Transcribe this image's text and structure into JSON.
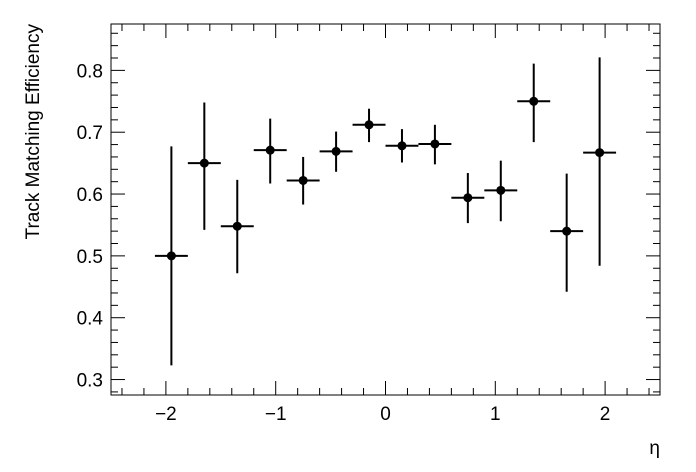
{
  "chart_data": {
    "type": "scatter",
    "title": "",
    "xlabel": "η",
    "ylabel": "Track Matching Efficiency",
    "xlim": [
      -2.5,
      2.5
    ],
    "ylim": [
      0.275,
      0.875
    ],
    "xticks": [
      -2,
      -1,
      0,
      1,
      2
    ],
    "xtick_labels": [
      "−2",
      "−1",
      "0",
      "1",
      "2"
    ],
    "yticks": [
      0.3,
      0.4,
      0.5,
      0.6,
      0.7,
      0.8
    ],
    "ytick_labels": [
      "0.3",
      "0.4",
      "0.5",
      "0.6",
      "0.7",
      "0.8"
    ],
    "grid": false,
    "legend": "none",
    "marker_color": "#000000",
    "points": [
      {
        "x": -1.95,
        "xerr": 0.15,
        "y": 0.5,
        "ylo": 0.323,
        "yhi": 0.677
      },
      {
        "x": -1.65,
        "xerr": 0.15,
        "y": 0.65,
        "ylo": 0.542,
        "yhi": 0.748
      },
      {
        "x": -1.35,
        "xerr": 0.15,
        "y": 0.548,
        "ylo": 0.472,
        "yhi": 0.623
      },
      {
        "x": -1.05,
        "xerr": 0.15,
        "y": 0.671,
        "ylo": 0.617,
        "yhi": 0.722
      },
      {
        "x": -0.75,
        "xerr": 0.15,
        "y": 0.622,
        "ylo": 0.583,
        "yhi": 0.66
      },
      {
        "x": -0.45,
        "xerr": 0.15,
        "y": 0.669,
        "ylo": 0.636,
        "yhi": 0.701
      },
      {
        "x": -0.15,
        "xerr": 0.15,
        "y": 0.712,
        "ylo": 0.684,
        "yhi": 0.738
      },
      {
        "x": 0.15,
        "xerr": 0.15,
        "y": 0.678,
        "ylo": 0.651,
        "yhi": 0.705
      },
      {
        "x": 0.45,
        "xerr": 0.15,
        "y": 0.681,
        "ylo": 0.648,
        "yhi": 0.712
      },
      {
        "x": 0.75,
        "xerr": 0.15,
        "y": 0.594,
        "ylo": 0.553,
        "yhi": 0.634
      },
      {
        "x": 1.05,
        "xerr": 0.15,
        "y": 0.606,
        "ylo": 0.556,
        "yhi": 0.654
      },
      {
        "x": 1.35,
        "xerr": 0.15,
        "y": 0.75,
        "ylo": 0.684,
        "yhi": 0.811
      },
      {
        "x": 1.65,
        "xerr": 0.15,
        "y": 0.54,
        "ylo": 0.442,
        "yhi": 0.633
      },
      {
        "x": 1.95,
        "xerr": 0.15,
        "y": 0.667,
        "ylo": 0.484,
        "yhi": 0.821
      }
    ]
  }
}
